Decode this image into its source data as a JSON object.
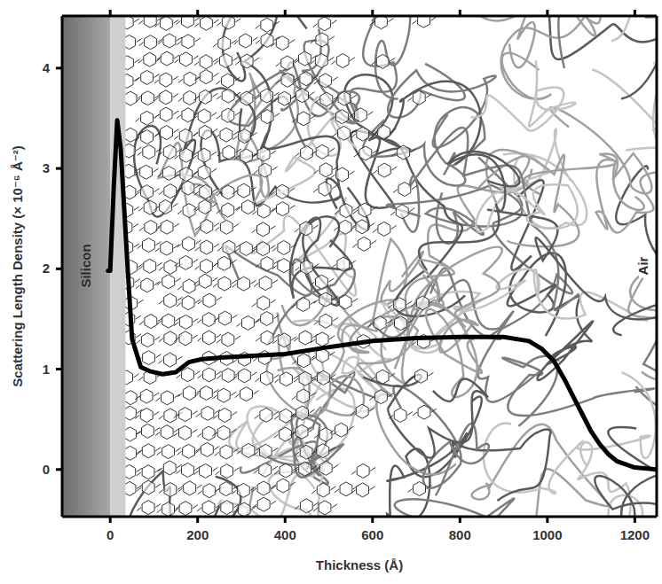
{
  "chart_data": {
    "type": "line",
    "x_label": "Thickness (Å)",
    "y_label": "Scattering Length Density (× 10⁻⁶ Å⁻²)",
    "annotations": [
      "Silicon",
      "Air"
    ],
    "x": [
      -5,
      0,
      8,
      16,
      24,
      32,
      40,
      50,
      70,
      90,
      120,
      150,
      180,
      210,
      270,
      400,
      500,
      600,
      700,
      800,
      900,
      958,
      988,
      1015,
      1039,
      1060,
      1080,
      1100,
      1120,
      1140,
      1160,
      1200,
      1250
    ],
    "series": [
      {
        "color": "#000000",
        "values": [
          1.98,
          1.98,
          2.8,
          3.48,
          3.2,
          2.6,
          2.0,
          1.3,
          1.02,
          0.98,
          0.95,
          0.97,
          1.07,
          1.1,
          1.12,
          1.15,
          1.22,
          1.28,
          1.31,
          1.32,
          1.32,
          1.28,
          1.2,
          1.08,
          0.9,
          0.72,
          0.55,
          0.38,
          0.25,
          0.15,
          0.08,
          0.02,
          0.0
        ]
      }
    ],
    "xlim": [
      -110,
      1250
    ],
    "ylim": [
      -0.47,
      4.52
    ],
    "xticks": [
      0,
      200,
      400,
      600,
      800,
      1000,
      1200
    ],
    "yticks": [
      0,
      1,
      2,
      3,
      4
    ],
    "grid": false
  }
}
